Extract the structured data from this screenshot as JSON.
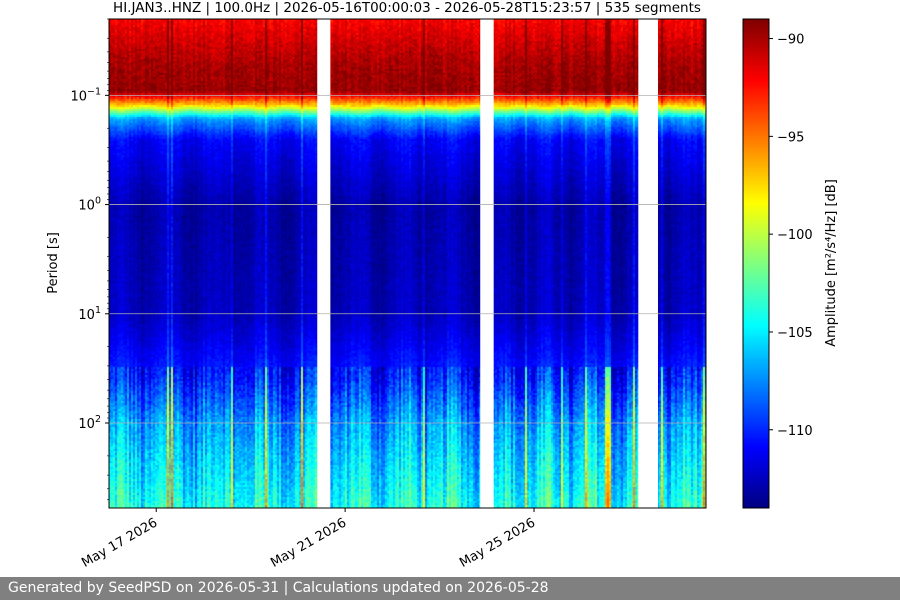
{
  "chart_data": {
    "type": "heatmap",
    "title": "HI.JAN3..HNZ | 100.0Hz | 2026-05-16T00:00:03 - 2026-05-28T15:23:57 | 535 segments",
    "xlabel": "",
    "ylabel": "Period [s]",
    "colorbar_label": "Amplitude [m²/s⁴/Hz] [dB]",
    "x_range": [
      "2026-05-16T00:00",
      "2026-05-28T15:24"
    ],
    "x_ticks": [
      {
        "date": "2026-05-17",
        "label": "May 17 2026"
      },
      {
        "date": "2026-05-21",
        "label": "May 21 2026"
      },
      {
        "date": "2026-05-25",
        "label": "May 25 2026"
      }
    ],
    "y_scale": "log",
    "y_inverted": true,
    "y_range_seconds": [
      0.02,
      600
    ],
    "y_ticks": [
      {
        "value": 0.1,
        "base": "10",
        "exp": "−1"
      },
      {
        "value": 1,
        "base": "10",
        "exp": "0"
      },
      {
        "value": 10,
        "base": "10",
        "exp": "1"
      },
      {
        "value": 100,
        "base": "10",
        "exp": "2"
      }
    ],
    "grid": true,
    "colormap": "jet",
    "color_range_db": [
      -114,
      -89
    ],
    "colorbar_ticks": [
      -90,
      -95,
      -100,
      -105,
      -110
    ],
    "data_gaps": [
      [
        "2026-05-20T09:50",
        "2026-05-20T16:30"
      ],
      [
        "2026-05-23T20:40",
        "2026-05-24T03:30"
      ],
      [
        "2026-05-27T05:00",
        "2026-05-27T15:00"
      ]
    ],
    "amplitude_profile_by_period": [
      {
        "period_s": 0.02,
        "db": -92
      },
      {
        "period_s": 0.05,
        "db": -90
      },
      {
        "period_s": 0.09,
        "db": -89.5
      },
      {
        "period_s": 0.12,
        "db": -97
      },
      {
        "period_s": 0.16,
        "db": -107
      },
      {
        "period_s": 0.25,
        "db": -111
      },
      {
        "period_s": 1,
        "db": -113
      },
      {
        "period_s": 10,
        "db": -112.5
      },
      {
        "period_s": 40,
        "db": -110
      },
      {
        "period_s": 100,
        "db": -107
      },
      {
        "period_s": 600,
        "db": -104
      }
    ]
  },
  "footer": {
    "text": "Generated by SeedPSD on 2026-05-31 | Calculations updated on 2026-05-28"
  }
}
